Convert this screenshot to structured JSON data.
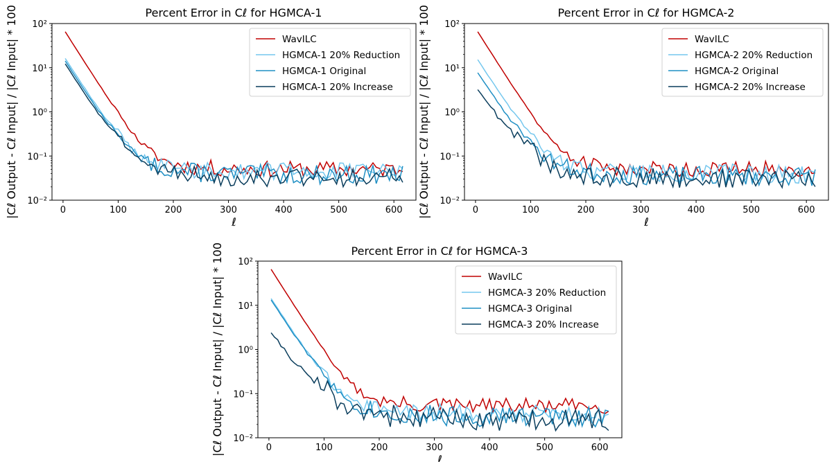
{
  "chart_data": [
    {
      "type": "line",
      "title": "Percent Error in Cℓ for HGMCA-1",
      "xlabel": "ℓ",
      "ylabel": "|Cℓ Output - Cℓ Input| / |Cℓ Input| * 100",
      "xlim": [
        -20,
        640
      ],
      "ylim": [
        0.01,
        100
      ],
      "yscale": "log",
      "xticks": [
        "0",
        "100",
        "200",
        "300",
        "400",
        "500",
        "600"
      ],
      "yticks": [
        "10⁻²",
        "10⁻¹",
        "10⁰",
        "10¹",
        "10²"
      ],
      "legend_position": "top-right",
      "series": [
        {
          "name": "WavILC",
          "color": "#c00000",
          "seed": 11,
          "start": 65,
          "base": 0.05,
          "jitter": 0.42
        },
        {
          "name": "HGMCA-1 20% Reduction",
          "color": "#74c7ee",
          "seed": 12,
          "start": 16,
          "base": 0.045,
          "jitter": 0.45
        },
        {
          "name": "HGMCA-1 Original",
          "color": "#1f8fc4",
          "seed": 13,
          "start": 14,
          "base": 0.038,
          "jitter": 0.5
        },
        {
          "name": "HGMCA-1 20% Increase",
          "color": "#0a3d5c",
          "seed": 14,
          "start": 12,
          "base": 0.033,
          "jitter": 0.5
        }
      ]
    },
    {
      "type": "line",
      "title": "Percent Error in Cℓ for HGMCA-2",
      "xlabel": "ℓ",
      "ylabel": "|Cℓ Output - Cℓ Input| / |Cℓ Input| * 100",
      "xlim": [
        -20,
        640
      ],
      "ylim": [
        0.01,
        100
      ],
      "yscale": "log",
      "xticks": [
        "0",
        "100",
        "200",
        "300",
        "400",
        "500",
        "600"
      ],
      "yticks": [
        "10⁻²",
        "10⁻¹",
        "10⁰",
        "10¹",
        "10²"
      ],
      "legend_position": "top-right",
      "series": [
        {
          "name": "WavILC",
          "color": "#c00000",
          "seed": 21,
          "start": 65,
          "base": 0.05,
          "jitter": 0.42
        },
        {
          "name": "HGMCA-2 20% Reduction",
          "color": "#74c7ee",
          "seed": 22,
          "start": 15,
          "base": 0.04,
          "jitter": 0.5
        },
        {
          "name": "HGMCA-2 Original",
          "color": "#1f8fc4",
          "seed": 23,
          "start": 7.5,
          "base": 0.035,
          "jitter": 0.5
        },
        {
          "name": "HGMCA-2 20% Increase",
          "color": "#0a3d5c",
          "seed": 24,
          "start": 3,
          "base": 0.03,
          "jitter": 0.55
        }
      ]
    },
    {
      "type": "line",
      "title": "Percent Error in Cℓ for HGMCA-3",
      "xlabel": "ℓ",
      "ylabel": "|Cℓ Output - Cℓ Input| / |Cℓ Input| * 100",
      "xlim": [
        -20,
        640
      ],
      "ylim": [
        0.01,
        100
      ],
      "yscale": "log",
      "xticks": [
        "0",
        "100",
        "200",
        "300",
        "400",
        "500",
        "600"
      ],
      "yticks": [
        "10⁻²",
        "10⁻¹",
        "10⁰",
        "10¹",
        "10²"
      ],
      "legend_position": "top-right",
      "series": [
        {
          "name": "WavILC",
          "color": "#c00000",
          "seed": 31,
          "start": 65,
          "base": 0.052,
          "jitter": 0.42
        },
        {
          "name": "HGMCA-3 20% Reduction",
          "color": "#74c7ee",
          "seed": 32,
          "start": 14,
          "base": 0.035,
          "jitter": 0.5
        },
        {
          "name": "HGMCA-3 Original",
          "color": "#1f8fc4",
          "seed": 33,
          "start": 13,
          "base": 0.03,
          "jitter": 0.55
        },
        {
          "name": "HGMCA-3 20% Increase",
          "color": "#0a3d5c",
          "seed": 34,
          "start": 2.2,
          "base": 0.025,
          "jitter": 0.6
        }
      ]
    }
  ]
}
